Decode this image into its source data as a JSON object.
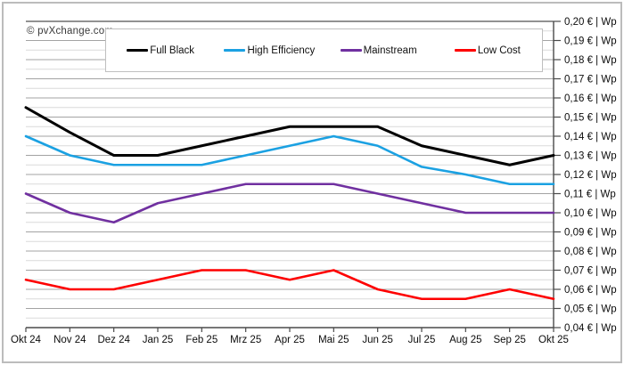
{
  "watermark": "© pvXchange.com",
  "chart_data": {
    "type": "line",
    "title": "",
    "xlabel": "",
    "ylabel": "€ | Wp",
    "grid": "on",
    "legend_position": "top",
    "x_categories": [
      "Okt 24",
      "Nov 24",
      "Dez 24",
      "Jan 25",
      "Feb 25",
      "Mrz 25",
      "Apr 25",
      "Mai 25",
      "Jun 25",
      "Jul 25",
      "Aug 25",
      "Sep 25",
      "Okt 25"
    ],
    "series": [
      {
        "name": "Full Black",
        "color": "#000000",
        "values": [
          0.155,
          0.142,
          0.13,
          0.13,
          0.135,
          0.14,
          0.145,
          0.145,
          0.145,
          0.135,
          0.13,
          0.125,
          0.13
        ]
      },
      {
        "name": "High Efficiency",
        "color": "#1BA1E2",
        "values": [
          0.14,
          0.13,
          0.125,
          0.125,
          0.125,
          0.13,
          0.135,
          0.14,
          0.135,
          0.124,
          0.12,
          0.115,
          0.115
        ]
      },
      {
        "name": "Mainstream",
        "color": "#7030A0",
        "values": [
          0.11,
          0.1,
          0.095,
          0.105,
          0.11,
          0.115,
          0.115,
          0.115,
          0.11,
          0.105,
          0.1,
          0.1,
          0.1
        ]
      },
      {
        "name": "Low Cost",
        "color": "#FE0000",
        "values": [
          0.065,
          0.06,
          0.06,
          0.065,
          0.07,
          0.07,
          0.065,
          0.07,
          0.06,
          0.055,
          0.055,
          0.06,
          0.055
        ]
      }
    ],
    "y_axis": {
      "min": 0.04,
      "max": 0.2,
      "major_step": 0.01,
      "minor_step": 0.005,
      "labels": [
        "0,20 € | Wp",
        "0,19 € | Wp",
        "0,18 € | Wp",
        "0,17 € | Wp",
        "0,16 € | Wp",
        "0,15 € | Wp",
        "0,14 € | Wp",
        "0,13 € | Wp",
        "0,12 € | Wp",
        "0,11 € | Wp",
        "0,10 € | Wp",
        "0,09 € | Wp",
        "0,08 € | Wp",
        "0,07 € | Wp",
        "0,06 € | Wp",
        "0,05 € | Wp",
        "0,04 € | Wp"
      ]
    }
  }
}
